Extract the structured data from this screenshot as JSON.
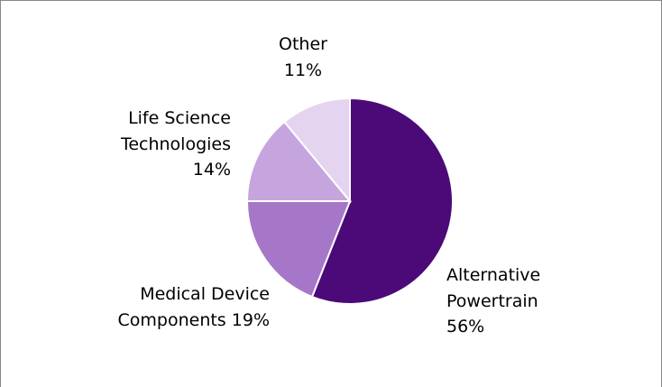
{
  "chart_data": {
    "type": "pie",
    "categories": [
      "Alternative Powertrain",
      "Medical Device Components",
      "Life Science Technologies",
      "Other"
    ],
    "values": [
      56,
      19,
      14,
      11
    ],
    "value_labels": [
      "56%",
      "19%",
      "14%",
      "11%"
    ],
    "colors": [
      "#4b0a78",
      "#a677c9",
      "#c6a4dd",
      "#e4d4ef"
    ]
  }
}
